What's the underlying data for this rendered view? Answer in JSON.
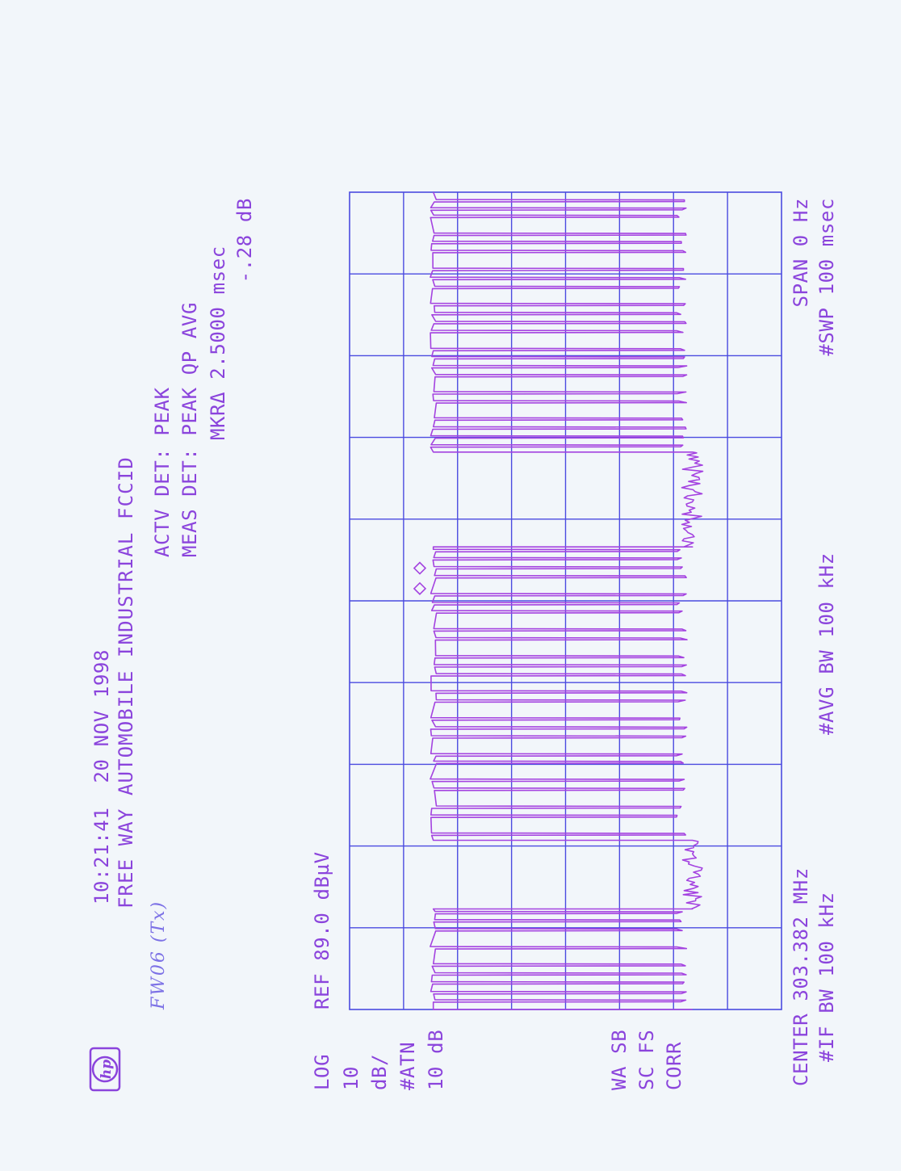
{
  "header": {
    "logo": "hp",
    "timestamp": "10:21:41  20 NOV 1998",
    "title": "FREE WAY AUTOMOBILE INDUSTRIAL FCCID",
    "handwritten_note": "FW06 (Tx)"
  },
  "detector": {
    "actv_det": "ACTV DET: PEAK",
    "meas_det": "MEAS DET: PEAK QP AVG",
    "marker_delta": "MKRΔ 2.5000 msec",
    "marker_delta_value": "-.28 dB"
  },
  "settings_left": {
    "scale_lines": [
      "LOG",
      "10",
      "dB/",
      "#ATN",
      "10 dB"
    ],
    "ref_level": "REF 89.0 dBµV",
    "flags": [
      "WA SB",
      "SC FS",
      "CORR"
    ]
  },
  "footer": {
    "center": "CENTER 303.382 MHz",
    "span": "SPAN 0 Hz",
    "if_bw": "#IF BW 100 kHz",
    "avg_bw": "#AVG BW 100 kHz",
    "sweep": "#SWP 100 msec"
  },
  "colors": {
    "paper": "#f2f6fa",
    "grid": "#4b4be0",
    "trace": "#a443e0",
    "text": "#8b44dc"
  },
  "chart_data": {
    "type": "line",
    "orientation": "rotated 90 degrees counter-clockwise",
    "x_units": "ms",
    "y_units": "dBuV",
    "xlim": [
      0,
      100
    ],
    "ylim": [
      9,
      89
    ],
    "x_divisions": 10,
    "y_divisions": 8,
    "grid": true,
    "series": [
      {
        "on_level_dBuV": 73.5,
        "noise_floor_dBuV": 25.5,
        "bursts_ms": [
          [
            0,
            12.3
          ],
          [
            20.7,
            56.6
          ],
          [
            68.2,
            100
          ]
        ],
        "dip_times_ms": [
          [
            0.9,
            1.9,
            3.1,
            4.2,
            5.3,
            7.4,
            9.6,
            10.7,
            11.7
          ],
          [
            21.3,
            23.5,
            24.6,
            26.8,
            27.9,
            30.1,
            31.0,
            33.2,
            34.3,
            35.4,
            37.6,
            38.7,
            40.8,
            41.9,
            43.0,
            45.2,
            46.3,
            48.5,
            49.5,
            50.6,
            52.8,
            53.9,
            55.0,
            56.0
          ],
          [
            68.8,
            69.9,
            71.0,
            72.1,
            74.2,
            75.3,
            77.4,
            78.5,
            79.6,
            80.6,
            82.8,
            83.9,
            85.0,
            86.1,
            88.2,
            89.3,
            90.4,
            92.6,
            93.7,
            94.7,
            96.9,
            97.8,
            98.8
          ]
        ]
      }
    ],
    "markers": [
      {
        "x": 51.5,
        "y": 74.5
      },
      {
        "x": 54.0,
        "y": 74.5
      }
    ]
  }
}
